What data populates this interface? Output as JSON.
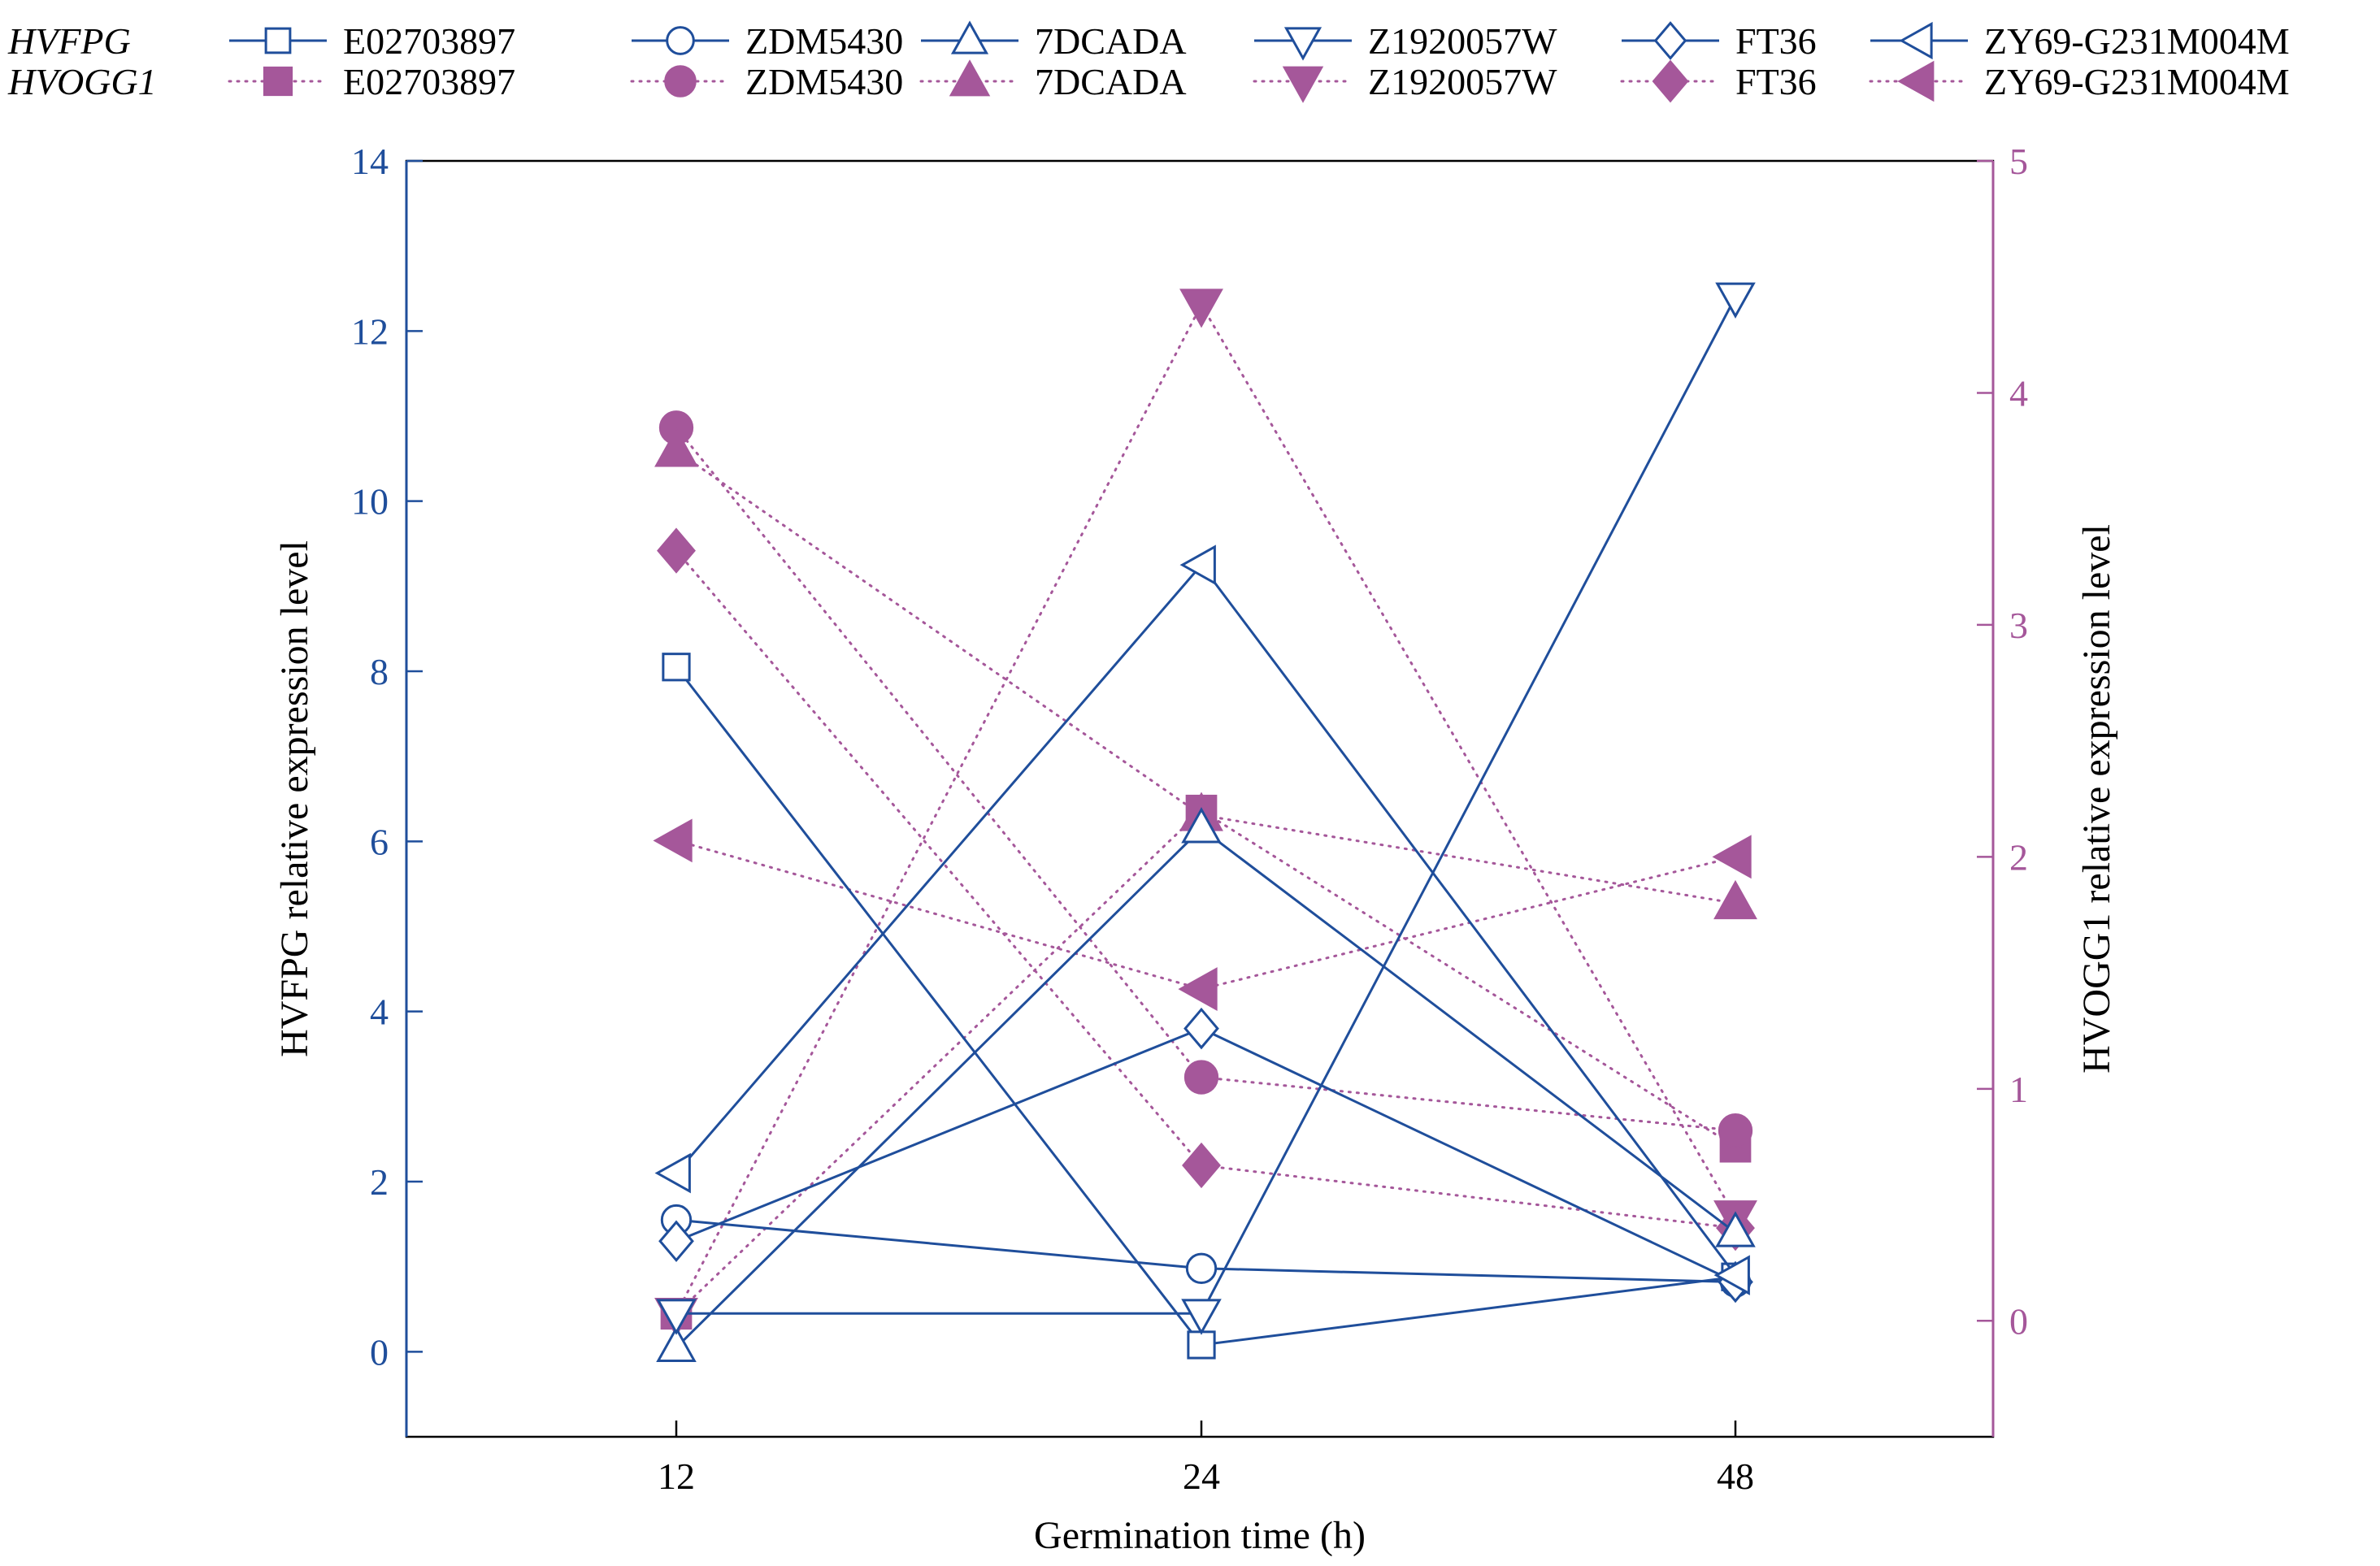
{
  "chart_data": {
    "type": "line",
    "xlabel": "Germination time (h)",
    "ylabel_left": "HVFPG relative expression level",
    "ylabel_right": "HVOGG1 relative expression level",
    "categories": [
      "12",
      "24",
      "48"
    ],
    "ylim_left": [
      -1,
      14
    ],
    "ylim_right": [
      -0.5,
      5
    ],
    "yticks_left": [
      0,
      2,
      4,
      6,
      8,
      10,
      12,
      14
    ],
    "yticks_right": [
      0,
      1,
      2,
      3,
      4,
      5
    ],
    "grid": false,
    "legend_position": "top",
    "colors": {
      "hvfpg": "#1f4e9b",
      "hvogg1": "#a5579a"
    },
    "groups": [
      {
        "title": "HVFPG",
        "axis": "left",
        "style": "solid-open-markers",
        "series": [
          {
            "name": "E02703897",
            "marker": "square",
            "values": [
              8.05,
              0.08,
              0.88
            ]
          },
          {
            "name": "ZDM5430",
            "marker": "circle",
            "values": [
              1.55,
              0.98,
              0.82
            ]
          },
          {
            "name": "7DCADA",
            "marker": "triangle-up",
            "values": [
              0.05,
              6.15,
              1.4
            ]
          },
          {
            "name": "Z1920057W",
            "marker": "triangle-down",
            "values": [
              0.45,
              0.45,
              12.4
            ]
          },
          {
            "name": "FT36",
            "marker": "diamond",
            "values": [
              1.3,
              3.8,
              0.82
            ]
          },
          {
            "name": "ZY69-G231M004M",
            "marker": "triangle-left",
            "values": [
              2.1,
              9.25,
              0.9
            ]
          }
        ]
      },
      {
        "title": "HVOGG1",
        "axis": "right",
        "style": "dotted-filled-markers",
        "series": [
          {
            "name": "E02703897",
            "marker": "square",
            "values": [
              0.03,
              2.2,
              0.75
            ]
          },
          {
            "name": "ZDM5430",
            "marker": "circle",
            "values": [
              3.85,
              1.05,
              0.82
            ]
          },
          {
            "name": "7DCADA",
            "marker": "triangle-up",
            "values": [
              3.75,
              2.18,
              1.8
            ]
          },
          {
            "name": "Z1920057W",
            "marker": "triangle-down",
            "values": [
              0.03,
              4.38,
              0.45
            ]
          },
          {
            "name": "FT36",
            "marker": "diamond",
            "values": [
              3.32,
              0.67,
              0.4
            ]
          },
          {
            "name": "ZY69-G231M004M",
            "marker": "triangle-left",
            "values": [
              2.07,
              1.43,
              2.0
            ]
          }
        ]
      }
    ]
  }
}
